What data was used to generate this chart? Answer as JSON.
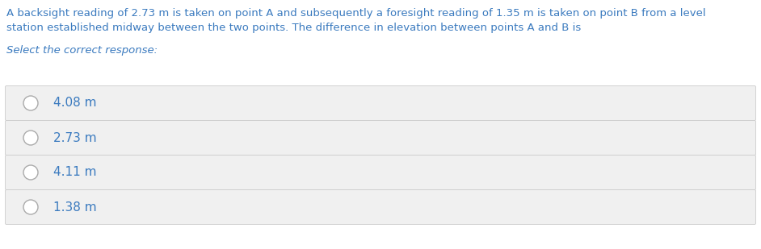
{
  "background_color": "#ffffff",
  "question_text_line1": "A backsight reading of 2.73 m is taken on point A and subsequently a foresight reading of 1.35 m is taken on point B from a level",
  "question_text_line2": "station established midway between the two points. The difference in elevation between points A and B is",
  "instruction_text": "Select the correct response:",
  "options": [
    "4.08 m",
    "2.73 m",
    "4.11 m",
    "1.38 m"
  ],
  "option_box_color": "#f0f0f0",
  "option_box_border": "#cccccc",
  "text_color": "#3a7abf",
  "circle_edge_color": "#aaaaaa",
  "question_fontsize": 9.5,
  "instruction_fontsize": 9.5,
  "option_fontsize": 11,
  "fig_width": 9.42,
  "fig_height": 3.09,
  "dpi": 100
}
